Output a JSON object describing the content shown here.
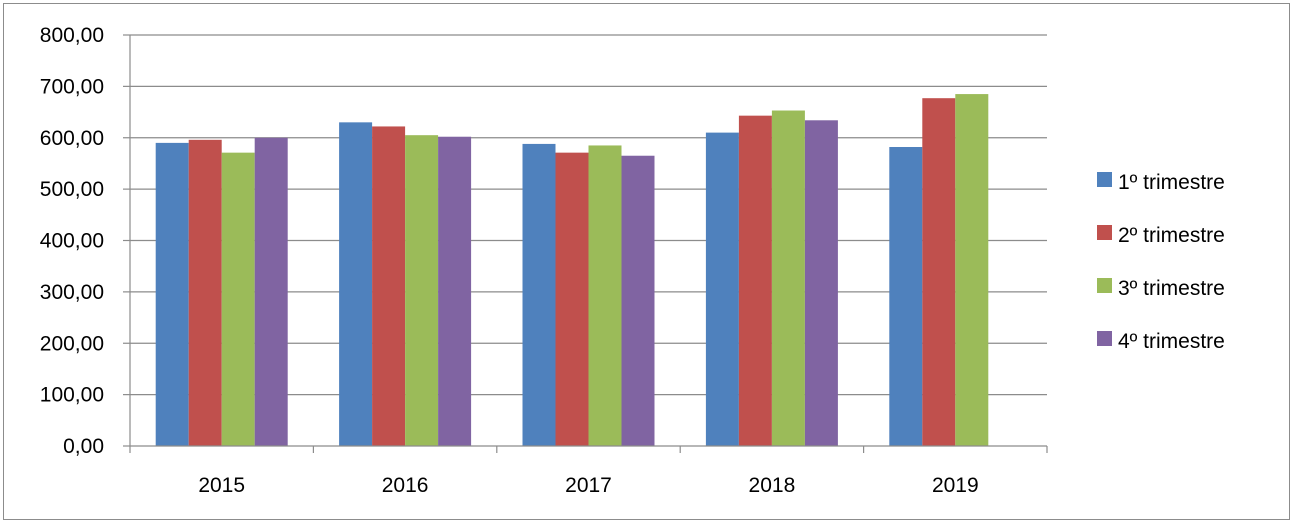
{
  "chart_data": {
    "type": "bar",
    "title": "",
    "xlabel": "",
    "ylabel": "",
    "categories": [
      "2015",
      "2016",
      "2017",
      "2018",
      "2019"
    ],
    "y_ticks": [
      "0,00",
      "100,00",
      "200,00",
      "300,00",
      "400,00",
      "500,00",
      "600,00",
      "700,00",
      "800,00"
    ],
    "ylim": [
      0,
      800
    ],
    "grid": true,
    "legend_position": "right",
    "series": [
      {
        "name": "1º trimestre",
        "color": "#4F81BD",
        "values": [
          590,
          630,
          588,
          610,
          582
        ]
      },
      {
        "name": "2º trimestre",
        "color": "#C0504D",
        "values": [
          596,
          622,
          571,
          643,
          677
        ]
      },
      {
        "name": "3º trimestre",
        "color": "#9BBB59",
        "values": [
          571,
          605,
          585,
          653,
          685
        ]
      },
      {
        "name": "4º trimestre",
        "color": "#8064A2",
        "values": [
          600,
          602,
          565,
          634,
          null
        ]
      }
    ]
  }
}
